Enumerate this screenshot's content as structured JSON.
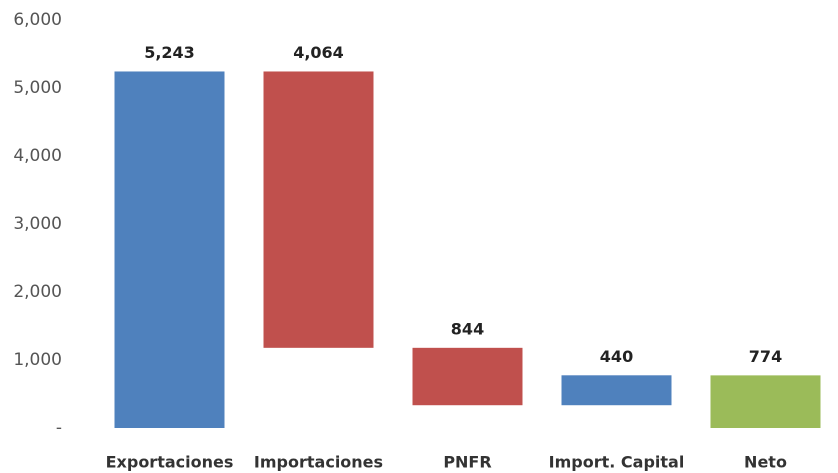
{
  "chart_data": {
    "type": "waterfall",
    "categories": [
      "Exportaciones",
      "Importaciones",
      "PNFR",
      "Import. Capital",
      "Neto"
    ],
    "values": [
      5243,
      -4064,
      -844,
      440,
      774
    ],
    "value_labels": [
      "5,243",
      "4,064",
      "844",
      "440",
      "774"
    ],
    "measure": [
      "relative",
      "relative",
      "relative",
      "relative",
      "total"
    ],
    "colors": [
      "#4f81bd",
      "#c0504d",
      "#c0504d",
      "#4f81bd",
      "#9bbb59"
    ],
    "ylim": [
      0,
      6000
    ],
    "yticks": [
      {
        "value": 0,
        "label": "-"
      },
      {
        "value": 1000,
        "label": "1,000"
      },
      {
        "value": 2000,
        "label": "2,000"
      },
      {
        "value": 3000,
        "label": "3,000"
      },
      {
        "value": 4000,
        "label": "4,000"
      },
      {
        "value": 5000,
        "label": "5,000"
      },
      {
        "value": 6000,
        "label": "6,000"
      }
    ],
    "grid": false
  }
}
